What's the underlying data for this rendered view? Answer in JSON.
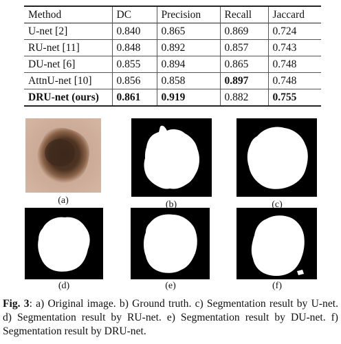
{
  "results_table": {
    "headers": [
      "Method",
      "DC",
      "Precision",
      "Recall",
      "Jaccard"
    ],
    "rows": [
      [
        "U-net [2]",
        "0.840",
        "0.865",
        "0.869",
        "0.724"
      ],
      [
        "RU-net [11]",
        "0.848",
        "0.892",
        "0.857",
        "0.743"
      ],
      [
        "DU-net [6]",
        "0.855",
        "0.894",
        "0.865",
        "0.748"
      ],
      [
        "AttnU-net [10]",
        "0.856",
        "0.858",
        "0.897",
        "0.748"
      ],
      [
        "DRU-net (ours)",
        "0.861",
        "0.919",
        "0.882",
        "0.755"
      ]
    ]
  },
  "figure": {
    "panels": [
      {
        "label": "(a)",
        "kind": "photo"
      },
      {
        "label": "(b)",
        "kind": "mask"
      },
      {
        "label": "(c)",
        "kind": "mask"
      },
      {
        "label": "(d)",
        "kind": "mask"
      },
      {
        "label": "(e)",
        "kind": "mask"
      },
      {
        "label": "(f)",
        "kind": "mask"
      }
    ],
    "caption": {
      "label": "Fig. 3",
      "text": ": a) Original image. b) Ground truth. c) Segmentation result by U-net. d) Segmentation result by RU-net. e) Segmentation result by DU-net. f) Segmentation result by DRU-net."
    },
    "colors": {
      "mask_background": "#000000",
      "mask_foreground": "#ffffff",
      "skin": "#c9a894",
      "lesion_core": "#3f2a1c",
      "lesion_edge": "#8a6248"
    }
  }
}
